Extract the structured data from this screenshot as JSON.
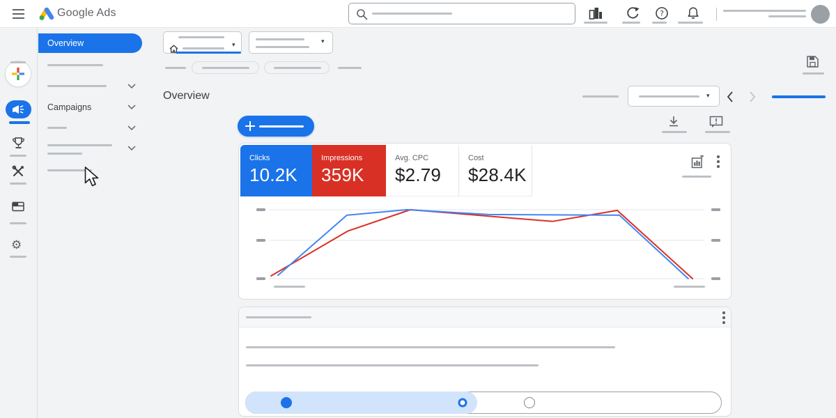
{
  "topbar": {
    "brand": "Google Ads",
    "search": {
      "placeholder": ""
    },
    "icons": [
      "insert-chart-icon",
      "refresh-icon",
      "help-icon",
      "notifications-icon"
    ]
  },
  "sidebar": {
    "selected_item": "Overview",
    "campaigns_label": "Campaigns"
  },
  "page": {
    "title": "Overview"
  },
  "scorecards": [
    {
      "label": "Clicks",
      "value": "10.2K",
      "bg": "#1a73e8",
      "fg": "#ffffff"
    },
    {
      "label": "Impressions",
      "value": "359K",
      "bg": "#d93025",
      "fg": "#ffffff"
    },
    {
      "label": "Avg. CPC",
      "value": "$2.79",
      "bg": "#ffffff",
      "fg": "#202124"
    },
    {
      "label": "Cost",
      "value": "$28.4K",
      "bg": "#ffffff",
      "fg": "#202124"
    }
  ],
  "chart_data": {
    "type": "line",
    "title": "",
    "xlabel": "",
    "ylabel": "",
    "ylim": [
      0,
      100
    ],
    "grid": true,
    "gridlines_percent": [
      100,
      50,
      0
    ],
    "axis_tick_labels": "placeholder-bars-only",
    "legend": "top scorecards act as series legend (Clicks=blue, Impressions=red)",
    "series": [
      {
        "name": "Clicks",
        "color": "#4285f4",
        "x_frac": [
          0.021,
          0.179,
          0.317,
          0.504,
          0.805,
          0.963
        ],
        "values": [
          5,
          92,
          100,
          93,
          92,
          0
        ]
      },
      {
        "name": "Impressions",
        "color": "#d93025",
        "x_frac": [
          0.005,
          0.181,
          0.325,
          0.651,
          0.8,
          0.973
        ],
        "values": [
          4,
          69,
          100,
          83,
          99,
          0
        ]
      }
    ]
  },
  "optimization_bar": {
    "fill_percent": 48.7,
    "markers": [
      {
        "type": "filled-blue",
        "pos_percent": 8.5
      },
      {
        "type": "outlined-blue",
        "pos_percent": 45.5
      },
      {
        "type": "outlined-gray",
        "pos_percent": 59.5
      }
    ]
  },
  "colors": {
    "accent_blue": "#1a73e8",
    "chart_blue": "#4285f4",
    "chart_red": "#d93025",
    "page_bg": "#f1f3f4",
    "placeholder": "#bdc1c6"
  }
}
